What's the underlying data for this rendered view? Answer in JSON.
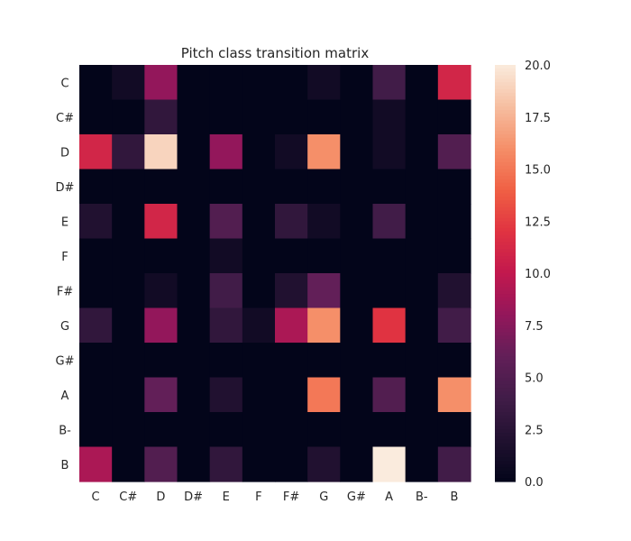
{
  "chart_data": {
    "type": "heatmap",
    "title": "Pitch class transition matrix",
    "xlabel": "",
    "ylabel": "",
    "x_categories": [
      "C",
      "C#",
      "D",
      "D#",
      "E",
      "F",
      "F#",
      "G",
      "G#",
      "A",
      "B-",
      "B"
    ],
    "y_categories": [
      "C",
      "C#",
      "D",
      "D#",
      "E",
      "F",
      "F#",
      "G",
      "G#",
      "A",
      "B-",
      "B"
    ],
    "values": [
      [
        0,
        1,
        8,
        0,
        0,
        0,
        0,
        1,
        0,
        4,
        0,
        11
      ],
      [
        0,
        0,
        3,
        0,
        0,
        0,
        0,
        0,
        0,
        1,
        0,
        0
      ],
      [
        11,
        3,
        19,
        0,
        8,
        0,
        1,
        16,
        0,
        1,
        0,
        5
      ],
      [
        0,
        0,
        0,
        0,
        0,
        0,
        0,
        0,
        0,
        0,
        0,
        0
      ],
      [
        2,
        0,
        11,
        0,
        5,
        0,
        3,
        1,
        0,
        4,
        0,
        0
      ],
      [
        0,
        0,
        0,
        0,
        1,
        0,
        0,
        0,
        0,
        0,
        0,
        0
      ],
      [
        0,
        0,
        1,
        0,
        4,
        0,
        2,
        6,
        0,
        0,
        0,
        2
      ],
      [
        3,
        0,
        8,
        0,
        3,
        1,
        9,
        16,
        0,
        12,
        0,
        4
      ],
      [
        0,
        0,
        0,
        0,
        0,
        0,
        0,
        0,
        0,
        0,
        0,
        0
      ],
      [
        0,
        0,
        6,
        0,
        2,
        0,
        0,
        15,
        0,
        5,
        0,
        16
      ],
      [
        0,
        0,
        0,
        0,
        0,
        0,
        0,
        0,
        0,
        0,
        0,
        0
      ],
      [
        9,
        0,
        5,
        0,
        3,
        0,
        0,
        2,
        0,
        20,
        0,
        4
      ]
    ],
    "color_range": [
      0,
      20
    ],
    "colorbar_ticks": [
      "0.0",
      "2.5",
      "5.0",
      "7.5",
      "10.0",
      "12.5",
      "15.0",
      "17.5",
      "20.0"
    ],
    "colormap": "rocket",
    "grid": false
  }
}
